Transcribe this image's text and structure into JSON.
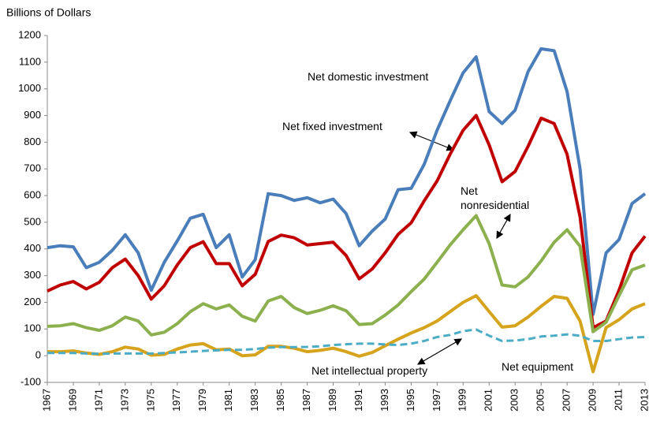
{
  "chart_data": {
    "type": "line",
    "y_axis_title": "Billions of Dollars",
    "x": [
      1967,
      1968,
      1969,
      1970,
      1971,
      1972,
      1973,
      1974,
      1975,
      1976,
      1977,
      1978,
      1979,
      1980,
      1981,
      1982,
      1983,
      1984,
      1985,
      1986,
      1987,
      1988,
      1989,
      1990,
      1991,
      1992,
      1993,
      1994,
      1995,
      1996,
      1997,
      1998,
      1999,
      2000,
      2001,
      2002,
      2003,
      2004,
      2005,
      2006,
      2007,
      2008,
      2009,
      2010,
      2011,
      2012,
      2013
    ],
    "xlim": [
      1967,
      2013
    ],
    "xticks": [
      1967,
      1969,
      1971,
      1973,
      1975,
      1977,
      1979,
      1981,
      1983,
      1985,
      1987,
      1989,
      1991,
      1993,
      1995,
      1997,
      1999,
      2001,
      2003,
      2005,
      2007,
      2009,
      2011,
      2013
    ],
    "ylim": [
      -100,
      1200
    ],
    "yticks": [
      -100,
      0,
      100,
      200,
      300,
      400,
      500,
      600,
      700,
      800,
      900,
      1000,
      1100,
      1200
    ],
    "series": [
      {
        "name": "Net domestic investment",
        "color": "#4a7ebb",
        "dashed": false,
        "values": [
          405,
          412,
          408,
          330,
          350,
          395,
          453,
          385,
          245,
          350,
          430,
          515,
          530,
          405,
          453,
          295,
          360,
          607,
          600,
          582,
          592,
          573,
          587,
          532,
          412,
          467,
          512,
          622,
          627,
          717,
          845,
          955,
          1060,
          1120,
          915,
          870,
          920,
          1065,
          1150,
          1143,
          990,
          700,
          155,
          385,
          435,
          570,
          607
        ]
      },
      {
        "name": "Net fixed investment",
        "color": "#c00000",
        "dashed": false,
        "values": [
          242,
          265,
          278,
          250,
          275,
          330,
          362,
          300,
          212,
          262,
          340,
          405,
          427,
          345,
          345,
          262,
          305,
          428,
          452,
          442,
          415,
          420,
          425,
          375,
          288,
          325,
          385,
          455,
          498,
          580,
          655,
          755,
          845,
          900,
          790,
          652,
          690,
          785,
          890,
          870,
          755,
          520,
          105,
          130,
          245,
          385,
          448
        ]
      },
      {
        "name": "Net nonresidential",
        "color": "#8db04f",
        "dashed": false,
        "values": [
          110,
          112,
          120,
          105,
          95,
          112,
          145,
          130,
          78,
          88,
          120,
          165,
          195,
          175,
          190,
          148,
          130,
          205,
          222,
          180,
          158,
          170,
          187,
          168,
          117,
          120,
          152,
          190,
          240,
          287,
          350,
          415,
          472,
          525,
          420,
          265,
          258,
          295,
          355,
          425,
          472,
          410,
          90,
          125,
          225,
          322,
          340
        ]
      },
      {
        "name": "Net equipment",
        "color": "#d6a31c",
        "dashed": false,
        "values": [
          15,
          15,
          18,
          10,
          5,
          15,
          32,
          25,
          2,
          5,
          25,
          40,
          45,
          22,
          25,
          0,
          3,
          35,
          35,
          28,
          15,
          20,
          28,
          15,
          -2,
          12,
          37,
          62,
          85,
          105,
          130,
          165,
          200,
          225,
          165,
          107,
          112,
          145,
          185,
          222,
          215,
          130,
          -60,
          105,
          135,
          175,
          195
        ]
      },
      {
        "name": "Net intellectual property",
        "color": "#4bacc6",
        "dashed": true,
        "values": [
          10,
          10,
          10,
          8,
          7,
          8,
          8,
          8,
          8,
          10,
          12,
          15,
          18,
          20,
          22,
          22,
          25,
          30,
          32,
          32,
          33,
          35,
          40,
          43,
          45,
          45,
          42,
          40,
          45,
          55,
          70,
          78,
          92,
          98,
          75,
          55,
          57,
          62,
          72,
          75,
          80,
          75,
          55,
          55,
          62,
          68,
          70
        ]
      }
    ]
  }
}
